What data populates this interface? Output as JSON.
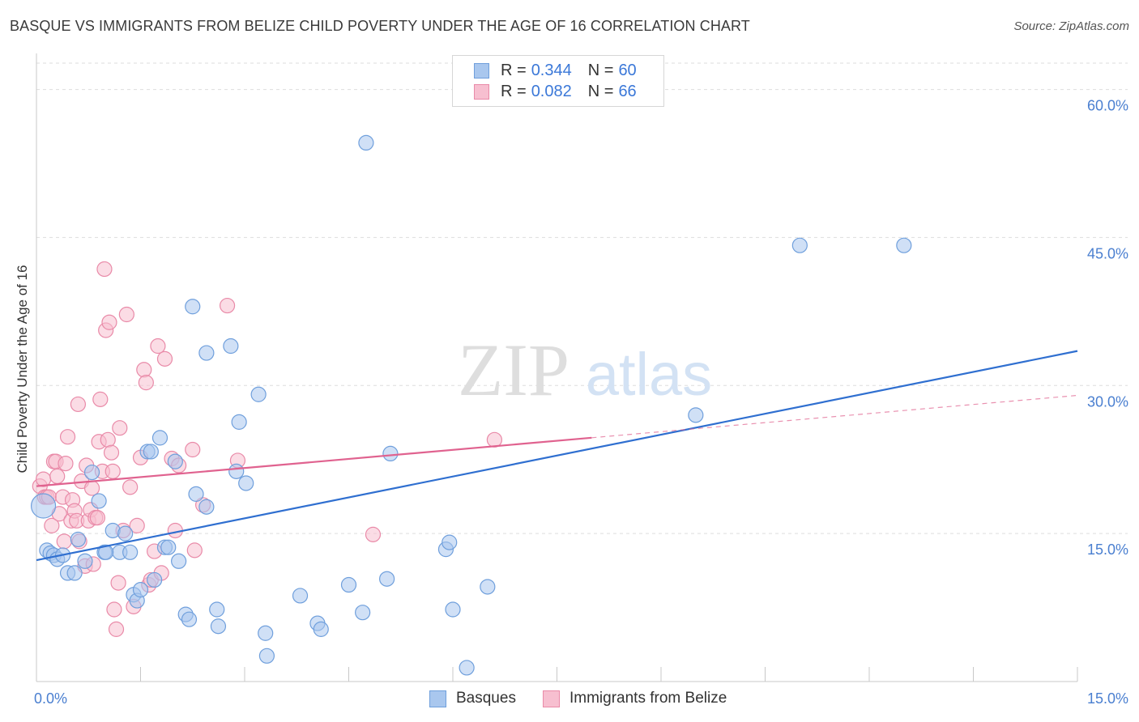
{
  "title": "BASQUE VS IMMIGRANTS FROM BELIZE CHILD POVERTY UNDER THE AGE OF 16 CORRELATION CHART",
  "source": "Source: ZipAtlas.com",
  "watermark": {
    "zip": "ZIP",
    "atlas": "atlas"
  },
  "legend": {
    "series1": {
      "r_label": "R =",
      "r_value": "0.344",
      "n_label": "N =",
      "n_value": "60"
    },
    "series2": {
      "r_label": "R =",
      "r_value": "0.082",
      "n_label": "N =",
      "n_value": "66"
    }
  },
  "colors": {
    "blue_fill": "#a9c7ee",
    "blue_stroke": "#6f9fdc",
    "blue_line": "#2f6fd0",
    "pink_fill": "#f7bfd0",
    "pink_stroke": "#e98aa8",
    "pink_line": "#e0628f",
    "axis_text": "#4a7fd0",
    "grid": "#dddddd"
  },
  "chart_data": {
    "type": "scatter",
    "title": "BASQUE VS IMMIGRANTS FROM BELIZE CHILD POVERTY UNDER THE AGE OF 16 CORRELATION CHART",
    "xlabel": "",
    "ylabel": "Child Poverty Under the Age of 16",
    "xlim": [
      0,
      15
    ],
    "ylim": [
      0,
      63
    ],
    "x_tick_labels": [
      "0.0%",
      "15.0%"
    ],
    "y_ticks": [
      15,
      30,
      45,
      60
    ],
    "y_tick_labels": [
      "15.0%",
      "30.0%",
      "45.0%",
      "60.0%"
    ],
    "grid": true,
    "series": [
      {
        "name": "Basques",
        "r": 0.344,
        "n": 60,
        "trend": {
          "x": [
            0,
            15
          ],
          "y": [
            12.3,
            33.5
          ],
          "style": "solid"
        },
        "points": [
          [
            0.1,
            17.8
          ],
          [
            0.15,
            13.3
          ],
          [
            0.2,
            13.0
          ],
          [
            0.25,
            12.8
          ],
          [
            0.3,
            12.4
          ],
          [
            0.38,
            12.8
          ],
          [
            0.45,
            11.0
          ],
          [
            0.55,
            11.0
          ],
          [
            0.6,
            14.4
          ],
          [
            0.7,
            12.2
          ],
          [
            0.8,
            21.2
          ],
          [
            0.9,
            18.3
          ],
          [
            0.98,
            13.1
          ],
          [
            1.1,
            15.3
          ],
          [
            1.2,
            13.1
          ],
          [
            1.28,
            15.0
          ],
          [
            1.35,
            13.1
          ],
          [
            1.4,
            8.8
          ],
          [
            1.45,
            8.2
          ],
          [
            1.5,
            9.3
          ],
          [
            1.6,
            23.3
          ],
          [
            1.65,
            23.3
          ],
          [
            1.7,
            10.3
          ],
          [
            1.78,
            24.7
          ],
          [
            1.85,
            13.6
          ],
          [
            1.9,
            13.6
          ],
          [
            2.0,
            22.3
          ],
          [
            2.05,
            12.2
          ],
          [
            2.15,
            6.8
          ],
          [
            2.2,
            6.3
          ],
          [
            2.25,
            38.0
          ],
          [
            2.3,
            19.0
          ],
          [
            2.45,
            17.7
          ],
          [
            2.45,
            33.3
          ],
          [
            2.6,
            7.3
          ],
          [
            2.62,
            5.6
          ],
          [
            2.8,
            34.0
          ],
          [
            2.88,
            21.3
          ],
          [
            2.92,
            26.3
          ],
          [
            3.02,
            20.1
          ],
          [
            3.2,
            29.1
          ],
          [
            3.3,
            4.9
          ],
          [
            3.32,
            2.6
          ],
          [
            3.8,
            8.7
          ],
          [
            4.05,
            5.9
          ],
          [
            4.1,
            5.3
          ],
          [
            4.5,
            9.8
          ],
          [
            4.7,
            7.0
          ],
          [
            4.75,
            54.6
          ],
          [
            5.05,
            10.4
          ],
          [
            5.1,
            23.1
          ],
          [
            5.9,
            13.4
          ],
          [
            5.95,
            14.1
          ],
          [
            6.0,
            7.3
          ],
          [
            6.2,
            1.4
          ],
          [
            6.5,
            9.6
          ],
          [
            9.5,
            27.0
          ],
          [
            11.0,
            44.2
          ],
          [
            12.5,
            44.2
          ],
          [
            1.0,
            13.1
          ]
        ]
      },
      {
        "name": "Immigrants from Belize",
        "r": 0.082,
        "n": 66,
        "trend": {
          "x": [
            0,
            15
          ],
          "y": [
            19.8,
            29.0
          ],
          "solid_until": 8.0
        },
        "points": [
          [
            0.05,
            19.8
          ],
          [
            0.1,
            20.5
          ],
          [
            0.12,
            18.7
          ],
          [
            0.15,
            18.7
          ],
          [
            0.18,
            18.7
          ],
          [
            0.22,
            15.8
          ],
          [
            0.25,
            22.3
          ],
          [
            0.28,
            22.3
          ],
          [
            0.3,
            20.8
          ],
          [
            0.33,
            17.0
          ],
          [
            0.38,
            18.7
          ],
          [
            0.4,
            14.2
          ],
          [
            0.42,
            22.1
          ],
          [
            0.45,
            24.8
          ],
          [
            0.5,
            16.3
          ],
          [
            0.52,
            18.4
          ],
          [
            0.55,
            17.3
          ],
          [
            0.58,
            16.3
          ],
          [
            0.6,
            28.1
          ],
          [
            0.62,
            14.2
          ],
          [
            0.65,
            20.3
          ],
          [
            0.7,
            11.7
          ],
          [
            0.72,
            21.9
          ],
          [
            0.75,
            16.3
          ],
          [
            0.78,
            17.4
          ],
          [
            0.8,
            19.6
          ],
          [
            0.82,
            11.9
          ],
          [
            0.85,
            16.6
          ],
          [
            0.88,
            16.6
          ],
          [
            0.9,
            24.3
          ],
          [
            0.92,
            28.6
          ],
          [
            0.95,
            21.3
          ],
          [
            0.98,
            41.8
          ],
          [
            1.0,
            35.6
          ],
          [
            1.03,
            24.5
          ],
          [
            1.05,
            36.4
          ],
          [
            1.08,
            23.2
          ],
          [
            1.1,
            21.3
          ],
          [
            1.12,
            7.3
          ],
          [
            1.15,
            5.3
          ],
          [
            1.18,
            10.0
          ],
          [
            1.2,
            25.7
          ],
          [
            1.25,
            15.3
          ],
          [
            1.3,
            37.2
          ],
          [
            1.35,
            19.7
          ],
          [
            1.4,
            7.6
          ],
          [
            1.45,
            15.8
          ],
          [
            1.5,
            22.7
          ],
          [
            1.55,
            31.6
          ],
          [
            1.58,
            30.3
          ],
          [
            1.62,
            9.8
          ],
          [
            1.65,
            10.3
          ],
          [
            1.7,
            13.2
          ],
          [
            1.75,
            34.0
          ],
          [
            1.8,
            11.0
          ],
          [
            1.85,
            32.7
          ],
          [
            1.95,
            22.6
          ],
          [
            2.0,
            15.3
          ],
          [
            2.05,
            21.9
          ],
          [
            2.25,
            23.5
          ],
          [
            2.28,
            13.3
          ],
          [
            2.4,
            17.9
          ],
          [
            2.75,
            38.1
          ],
          [
            2.9,
            22.4
          ],
          [
            4.85,
            14.9
          ],
          [
            6.6,
            24.5
          ]
        ]
      }
    ]
  },
  "bottom_legend": {
    "series1_label": "Basques",
    "series2_label": "Immigrants from Belize"
  }
}
